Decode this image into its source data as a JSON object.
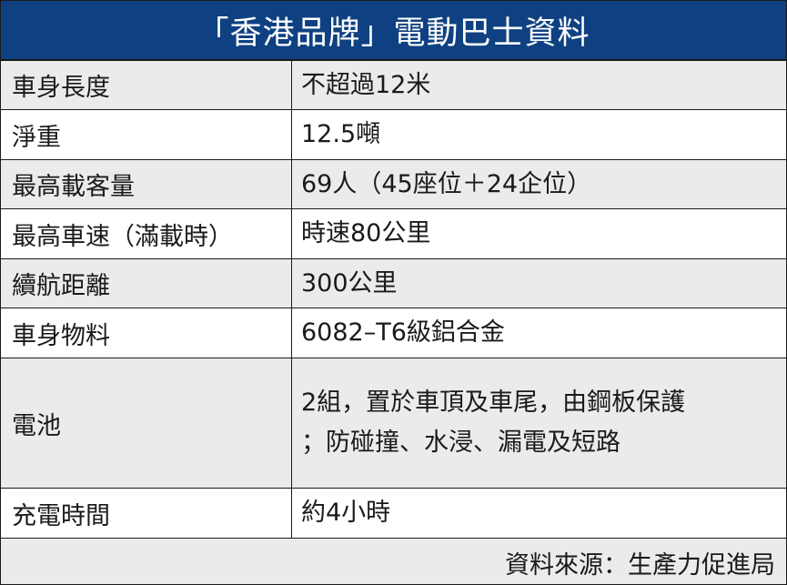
{
  "title": "「香港品牌」電動巴士資料",
  "rows": [
    {
      "label": "車身長度",
      "value": [
        "不超過12米"
      ]
    },
    {
      "label": "淨重",
      "value": [
        "12.5噸"
      ]
    },
    {
      "label": "最高載客量",
      "value": [
        "69人（45座位＋24企位）"
      ]
    },
    {
      "label": "最高車速（滿載時）",
      "value": [
        "時速80公里"
      ]
    },
    {
      "label": "續航距離",
      "value": [
        "300公里"
      ]
    },
    {
      "label": "車身物料",
      "value": [
        "6082–T6級鋁合金"
      ]
    },
    {
      "label": "電池",
      "value": [
        "2組，置於車頂及車尾，由鋼板保護",
        "；防碰撞、水浸、漏電及短路"
      ]
    },
    {
      "label": "充電時間",
      "value": [
        "約4小時"
      ]
    }
  ],
  "source": "資料來源：生產力促進局",
  "colors": {
    "header_bg": "#0f4182",
    "row_alt": "#ebebeb"
  }
}
